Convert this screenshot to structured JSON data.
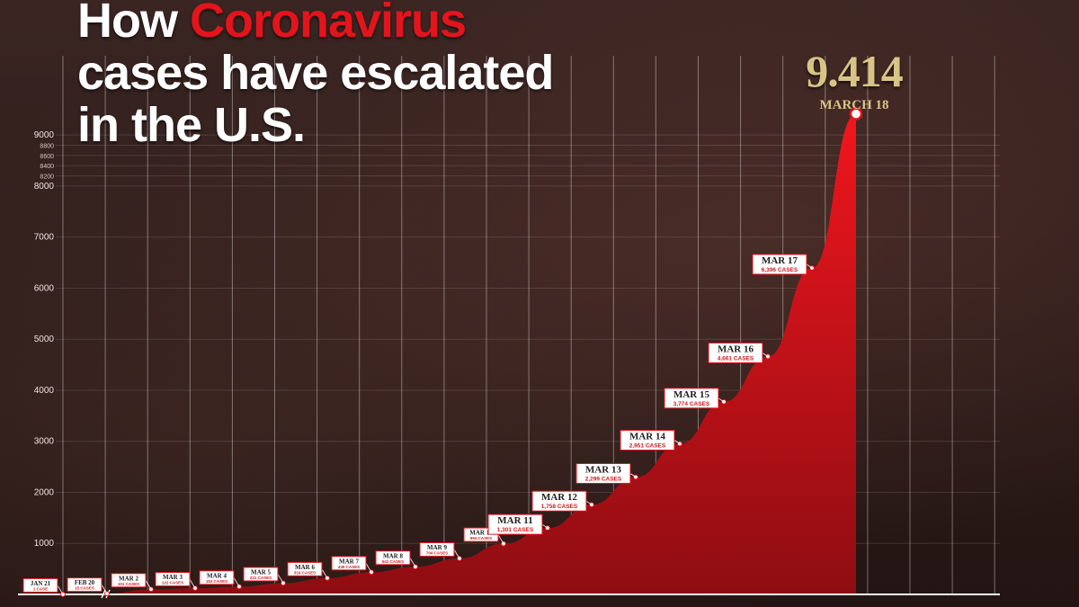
{
  "title": {
    "line1_prefix": "How ",
    "line1_highlight": "Coronavirus",
    "line2": "cases have escalated",
    "line3": "in the U.S."
  },
  "callout": {
    "value": "9.414",
    "date": "MARCH 18"
  },
  "colors": {
    "accent": "#e3141c",
    "callout": "#d8c486",
    "background": "#2a1a18"
  },
  "chart_data": {
    "type": "area",
    "ylim": [
      0,
      9000
    ],
    "yticks": [
      {
        "label": "1000",
        "value": 1000
      },
      {
        "label": "2000",
        "value": 2000
      },
      {
        "label": "3000",
        "value": 3000
      },
      {
        "label": "4000",
        "value": 4000
      },
      {
        "label": "5000",
        "value": 5000
      },
      {
        "label": "6000",
        "value": 6000
      },
      {
        "label": "7000",
        "value": 7000
      },
      {
        "label": "8000",
        "value": 8000
      },
      {
        "label": "8200",
        "value": 8200
      },
      {
        "label": "8400",
        "value": 8400
      },
      {
        "label": "8600",
        "value": 8600
      },
      {
        "label": "8800",
        "value": 8800
      },
      {
        "label": "9000",
        "value": 9000
      }
    ],
    "grid": true,
    "points": [
      {
        "date": "JAN 21",
        "cases_label": "1 CASE",
        "y": 1
      },
      {
        "date": "FEB 20",
        "cases_label": "15 CASES",
        "y": 15
      },
      {
        "date": "MAR 2",
        "cases_label": "101 CASES",
        "y": 101
      },
      {
        "date": "MAR 3",
        "cases_label": "122 CASES",
        "y": 122
      },
      {
        "date": "MAR 4",
        "cases_label": "153 CASES",
        "y": 153
      },
      {
        "date": "MAR 5",
        "cases_label": "221 CASES",
        "y": 221
      },
      {
        "date": "MAR 6",
        "cases_label": "319 CASES",
        "y": 319
      },
      {
        "date": "MAR 7",
        "cases_label": "435 CASES",
        "y": 435
      },
      {
        "date": "MAR 8",
        "cases_label": "541 CASES",
        "y": 541
      },
      {
        "date": "MAR 9",
        "cases_label": "704 CASES",
        "y": 704
      },
      {
        "date": "MAR 10",
        "cases_label": "994 CASES",
        "y": 994
      },
      {
        "date": "MAR 11",
        "cases_label": "1,301 CASES",
        "y": 1301
      },
      {
        "date": "MAR 12",
        "cases_label": "1,758 CASES",
        "y": 1758
      },
      {
        "date": "MAR 13",
        "cases_label": "2,299 CASES",
        "y": 2299
      },
      {
        "date": "MAR 14",
        "cases_label": "2,951 CASES",
        "y": 2951
      },
      {
        "date": "MAR 15",
        "cases_label": "3,774 CASES",
        "y": 3774
      },
      {
        "date": "MAR 16",
        "cases_label": "4,661 CASES",
        "y": 4661
      },
      {
        "date": "MAR 17",
        "cases_label": "6,396 CASES",
        "y": 6396
      },
      {
        "date": "MAR 18",
        "cases_label": "",
        "y": 9414
      }
    ]
  }
}
